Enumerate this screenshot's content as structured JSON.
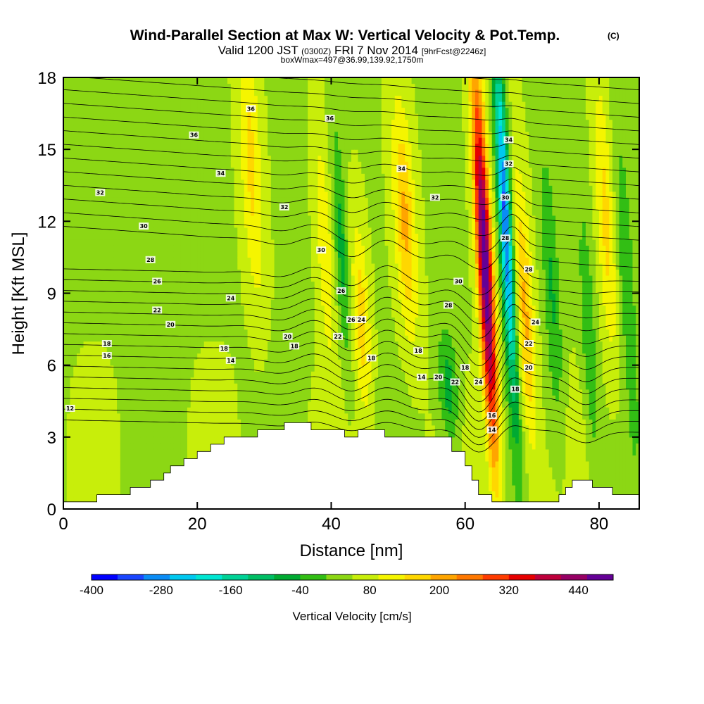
{
  "chart_data": {
    "type": "heatmap",
    "title": "Wind-Parallel Section at Max W: Vertical Velocity & Pot.Temp.",
    "title_mark": "(C)",
    "subtitle_parts": [
      "Valid 1200 JST",
      "(0300Z)",
      "FRI 7 Nov 2014",
      "[9hrFcst@2246z]"
    ],
    "subtitle2": "boxWmax=497@36.99,139.92,1750m",
    "xlabel": "Distance [nm]",
    "ylabel": "Height [Kft MSL]",
    "xlim": [
      0,
      86
    ],
    "ylim": [
      0,
      18
    ],
    "x_ticks": [
      "0",
      "20",
      "40",
      "60",
      "80"
    ],
    "y_ticks": [
      "0",
      "3",
      "6",
      "9",
      "12",
      "15",
      "18"
    ],
    "colorbar": {
      "label": "Vertical Velocity [cm/s]",
      "tick_labels": [
        "-400",
        "-280",
        "-160",
        "-40",
        "80",
        "200",
        "320",
        "440"
      ],
      "range": [
        -400,
        500
      ],
      "colors": [
        "#0000ff",
        "#1a46ff",
        "#0a8cf5",
        "#00c8f0",
        "#00e6d2",
        "#00d296",
        "#00be64",
        "#00aa32",
        "#32be14",
        "#8cd714",
        "#c8ee0a",
        "#f5f500",
        "#ffd700",
        "#ffa500",
        "#ff7800",
        "#ff3c00",
        "#e60000",
        "#be003c",
        "#960064",
        "#640096"
      ]
    },
    "terrain_kft": [
      [
        0,
        0.3
      ],
      [
        5,
        0.3
      ],
      [
        5,
        0.6
      ],
      [
        10,
        0.6
      ],
      [
        10,
        0.9
      ],
      [
        13,
        0.9
      ],
      [
        13,
        1.2
      ],
      [
        15,
        1.2
      ],
      [
        15,
        1.5
      ],
      [
        16,
        1.5
      ],
      [
        16,
        1.8
      ],
      [
        18,
        1.8
      ],
      [
        18,
        2.1
      ],
      [
        20,
        2.1
      ],
      [
        20,
        2.4
      ],
      [
        22,
        2.4
      ],
      [
        22,
        2.7
      ],
      [
        24,
        2.7
      ],
      [
        24,
        3.0
      ],
      [
        29,
        3.0
      ],
      [
        29,
        3.3
      ],
      [
        33,
        3.3
      ],
      [
        33,
        3.6
      ],
      [
        37,
        3.6
      ],
      [
        37,
        3.3
      ],
      [
        42,
        3.3
      ],
      [
        42,
        3.0
      ],
      [
        44,
        3.0
      ],
      [
        44,
        3.3
      ],
      [
        48,
        3.3
      ],
      [
        48,
        3.0
      ],
      [
        58,
        3.0
      ],
      [
        58,
        2.4
      ],
      [
        60,
        2.4
      ],
      [
        60,
        1.8
      ],
      [
        61,
        1.8
      ],
      [
        61,
        1.2
      ],
      [
        62,
        1.2
      ],
      [
        62,
        0.6
      ],
      [
        64,
        0.6
      ],
      [
        64,
        0.3
      ],
      [
        71,
        0.3
      ],
      [
        71,
        0.3
      ],
      [
        74,
        0.3
      ],
      [
        74,
        0.6
      ],
      [
        75,
        0.6
      ],
      [
        75,
        0.9
      ],
      [
        76,
        0.9
      ],
      [
        76,
        1.2
      ],
      [
        79,
        1.2
      ],
      [
        79,
        0.9
      ],
      [
        82,
        0.9
      ],
      [
        82,
        0.6
      ],
      [
        86,
        0.6
      ]
    ],
    "w_features": [
      {
        "x": 28,
        "z": 14.5,
        "sx": 1.6,
        "sz": 6,
        "w": 110
      },
      {
        "x": 39,
        "z": 11,
        "sx": 1.2,
        "sz": 5,
        "w": 90
      },
      {
        "x": 41.5,
        "z": 11,
        "sx": 1.0,
        "sz": 5,
        "w": -100
      },
      {
        "x": 44.5,
        "z": 8,
        "sx": 1.3,
        "sz": 4,
        "w": 120
      },
      {
        "x": 51,
        "z": 12,
        "sx": 1.6,
        "sz": 5,
        "w": 150
      },
      {
        "x": 57.5,
        "z": 5,
        "sx": 1.5,
        "sz": 2.5,
        "w": -120
      },
      {
        "x": 63,
        "z": 10,
        "sx": 1.1,
        "sz": 8,
        "w": 460
      },
      {
        "x": 66,
        "z": 12,
        "sx": 0.9,
        "sz": 7,
        "w": -370
      },
      {
        "x": 69,
        "z": 8,
        "sx": 1.3,
        "sz": 6,
        "w": 150
      },
      {
        "x": 73,
        "z": 9,
        "sx": 1.2,
        "sz": 6,
        "w": -90
      },
      {
        "x": 78.5,
        "z": 7,
        "sx": 1.1,
        "sz": 6,
        "w": -80
      },
      {
        "x": 81,
        "z": 12,
        "sx": 1.3,
        "sz": 6,
        "w": 110
      },
      {
        "x": 84,
        "z": 10,
        "sx": 1.2,
        "sz": 6,
        "w": -80
      }
    ],
    "contour_labels": [
      {
        "text": "36",
        "x": 28,
        "z": 16.7
      },
      {
        "text": "36",
        "x": 19.5,
        "z": 15.6
      },
      {
        "text": "36",
        "x": 39.8,
        "z": 16.3
      },
      {
        "text": "34",
        "x": 23.5,
        "z": 14.0
      },
      {
        "text": "34",
        "x": 50.5,
        "z": 14.2
      },
      {
        "text": "34",
        "x": 66.5,
        "z": 15.4
      },
      {
        "text": "32",
        "x": 5.5,
        "z": 13.2
      },
      {
        "text": "32",
        "x": 33,
        "z": 12.6
      },
      {
        "text": "32",
        "x": 55.5,
        "z": 13.0
      },
      {
        "text": "32",
        "x": 66.5,
        "z": 14.4
      },
      {
        "text": "30",
        "x": 12,
        "z": 11.8
      },
      {
        "text": "30",
        "x": 38.5,
        "z": 10.8
      },
      {
        "text": "30",
        "x": 66,
        "z": 13.0
      },
      {
        "text": "30",
        "x": 59,
        "z": 9.5
      },
      {
        "text": "28",
        "x": 13,
        "z": 10.4
      },
      {
        "text": "28",
        "x": 66,
        "z": 11.3
      },
      {
        "text": "28",
        "x": 57.5,
        "z": 8.5
      },
      {
        "text": "28",
        "x": 69.5,
        "z": 10.0
      },
      {
        "text": "26",
        "x": 14,
        "z": 9.5
      },
      {
        "text": "26",
        "x": 41.5,
        "z": 9.1
      },
      {
        "text": "26",
        "x": 43,
        "z": 7.9
      },
      {
        "text": "24",
        "x": 25,
        "z": 8.8
      },
      {
        "text": "24",
        "x": 44.5,
        "z": 7.9
      },
      {
        "text": "24",
        "x": 62,
        "z": 5.3
      },
      {
        "text": "24",
        "x": 70.5,
        "z": 7.8
      },
      {
        "text": "22",
        "x": 14,
        "z": 8.3
      },
      {
        "text": "22",
        "x": 41,
        "z": 7.2
      },
      {
        "text": "22",
        "x": 58.5,
        "z": 5.3
      },
      {
        "text": "22",
        "x": 69.5,
        "z": 6.9
      },
      {
        "text": "20",
        "x": 16,
        "z": 7.7
      },
      {
        "text": "20",
        "x": 33.5,
        "z": 7.2
      },
      {
        "text": "20",
        "x": 56,
        "z": 5.5
      },
      {
        "text": "20",
        "x": 69.5,
        "z": 5.9
      },
      {
        "text": "18",
        "x": 6.5,
        "z": 6.9
      },
      {
        "text": "18",
        "x": 24,
        "z": 6.7
      },
      {
        "text": "18",
        "x": 34.5,
        "z": 6.8
      },
      {
        "text": "18",
        "x": 46,
        "z": 6.3
      },
      {
        "text": "18",
        "x": 53,
        "z": 6.6
      },
      {
        "text": "18",
        "x": 60,
        "z": 5.9
      },
      {
        "text": "18",
        "x": 67.5,
        "z": 5.0
      },
      {
        "text": "16",
        "x": 6.5,
        "z": 6.4
      },
      {
        "text": "16",
        "x": 64,
        "z": 3.9
      },
      {
        "text": "14",
        "x": 25,
        "z": 6.2
      },
      {
        "text": "14",
        "x": 53.5,
        "z": 5.5
      },
      {
        "text": "14",
        "x": 64,
        "z": 3.3
      },
      {
        "text": "12",
        "x": 1,
        "z": 4.2
      }
    ]
  }
}
